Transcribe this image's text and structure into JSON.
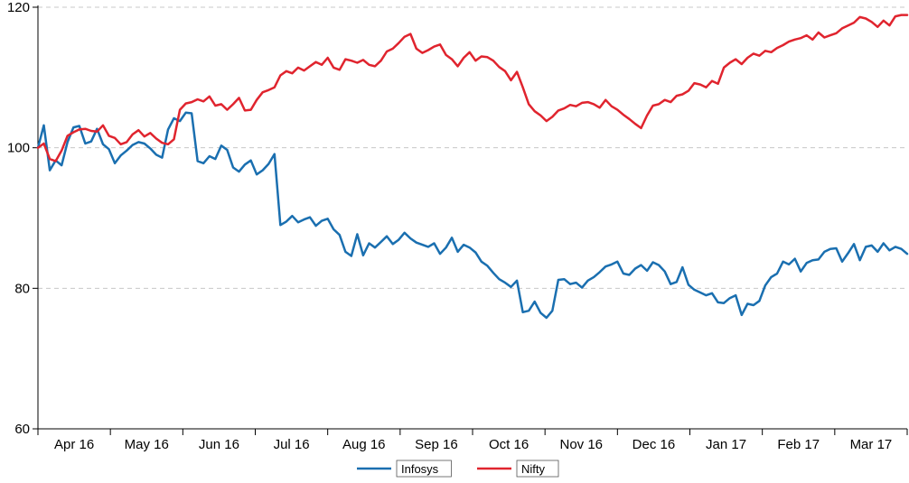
{
  "chart_data": {
    "type": "line",
    "title": "",
    "xlabel": "",
    "ylabel": "",
    "ylim": [
      60,
      120
    ],
    "yticks": [
      60,
      80,
      100,
      120
    ],
    "grid": "horizontal dashed",
    "legend_position": "bottom",
    "months": [
      "Apr 16",
      "May 16",
      "Jun 16",
      "Jul 16",
      "Aug 16",
      "Sep 16",
      "Oct 16",
      "Nov 16",
      "Dec 16",
      "Jan 17",
      "Feb 17",
      "Mar 17"
    ],
    "series": [
      {
        "name": "Infosys",
        "color": "#1a6fb0",
        "values": [
          100.0,
          103.2,
          96.8,
          98.2,
          97.5,
          100.8,
          102.9,
          103.1,
          100.6,
          100.9,
          102.7,
          100.5,
          99.8,
          97.8,
          98.9,
          99.6,
          100.4,
          100.8,
          100.6,
          99.9,
          99.0,
          98.6,
          102.6,
          104.2,
          103.8,
          105.0,
          104.9,
          98.1,
          97.8,
          98.8,
          98.4,
          100.3,
          99.7,
          97.2,
          96.6,
          97.6,
          98.2,
          96.2,
          96.8,
          97.7,
          99.1,
          89.0,
          89.5,
          90.3,
          89.4,
          89.8,
          90.1,
          88.9,
          89.6,
          89.9,
          88.4,
          87.6,
          85.2,
          84.6,
          87.7,
          84.7,
          86.4,
          85.8,
          86.6,
          87.4,
          86.3,
          86.9,
          87.9,
          87.1,
          86.5,
          86.2,
          85.9,
          86.4,
          84.9,
          85.8,
          87.2,
          85.2,
          86.2,
          85.8,
          85.1,
          83.8,
          83.2,
          82.2,
          81.3,
          80.8,
          80.2,
          81.1,
          76.6,
          76.8,
          78.1,
          76.5,
          75.8,
          76.8,
          81.2,
          81.3,
          80.6,
          80.8,
          80.1,
          81.1,
          81.6,
          82.3,
          83.1,
          83.4,
          83.8,
          82.1,
          81.9,
          82.8,
          83.3,
          82.5,
          83.7,
          83.3,
          82.4,
          80.6,
          80.9,
          83.0,
          80.5,
          79.8,
          79.4,
          79.0,
          79.3,
          78.0,
          77.9,
          78.6,
          79.0,
          76.2,
          77.8,
          77.6,
          78.2,
          80.4,
          81.6,
          82.1,
          83.8,
          83.4,
          84.2,
          82.4,
          83.6,
          84.0,
          84.1,
          85.2,
          85.6,
          85.7,
          83.8,
          85.0,
          86.3,
          84.0,
          85.9,
          86.1,
          85.2,
          86.4,
          85.4,
          85.9,
          85.6,
          84.9
        ]
      },
      {
        "name": "Nifty",
        "color": "#e0242e",
        "values": [
          100.0,
          100.6,
          98.4,
          98.1,
          99.6,
          101.7,
          102.2,
          102.6,
          102.7,
          102.4,
          102.3,
          103.2,
          101.7,
          101.4,
          100.5,
          100.8,
          101.9,
          102.5,
          101.6,
          102.1,
          101.3,
          100.7,
          100.5,
          101.2,
          105.4,
          106.3,
          106.5,
          106.9,
          106.6,
          107.3,
          106.0,
          106.2,
          105.4,
          106.2,
          107.1,
          105.3,
          105.4,
          106.8,
          107.9,
          108.2,
          108.6,
          110.3,
          110.9,
          110.6,
          111.4,
          111.0,
          111.6,
          112.2,
          111.8,
          112.8,
          111.4,
          111.1,
          112.6,
          112.4,
          112.1,
          112.5,
          111.8,
          111.6,
          112.4,
          113.7,
          114.1,
          114.9,
          115.8,
          116.2,
          114.1,
          113.5,
          113.9,
          114.4,
          114.7,
          113.2,
          112.6,
          111.6,
          112.8,
          113.6,
          112.4,
          113.0,
          112.9,
          112.4,
          111.5,
          110.9,
          109.6,
          110.8,
          108.6,
          106.2,
          105.2,
          104.6,
          103.8,
          104.4,
          105.3,
          105.6,
          106.1,
          105.9,
          106.4,
          106.5,
          106.2,
          105.7,
          106.8,
          105.9,
          105.4,
          104.7,
          104.1,
          103.4,
          102.8,
          104.6,
          106.0,
          106.2,
          106.8,
          106.5,
          107.4,
          107.6,
          108.1,
          109.2,
          109.0,
          108.6,
          109.5,
          109.1,
          111.4,
          112.1,
          112.6,
          111.9,
          112.8,
          113.4,
          113.1,
          113.8,
          113.6,
          114.2,
          114.6,
          115.1,
          115.4,
          115.6,
          116.0,
          115.4,
          116.4,
          115.7,
          116.0,
          116.3,
          117.0,
          117.4,
          117.8,
          118.6,
          118.4,
          117.9,
          117.2,
          118.1,
          117.4,
          118.7,
          118.9,
          118.9
        ]
      }
    ]
  }
}
